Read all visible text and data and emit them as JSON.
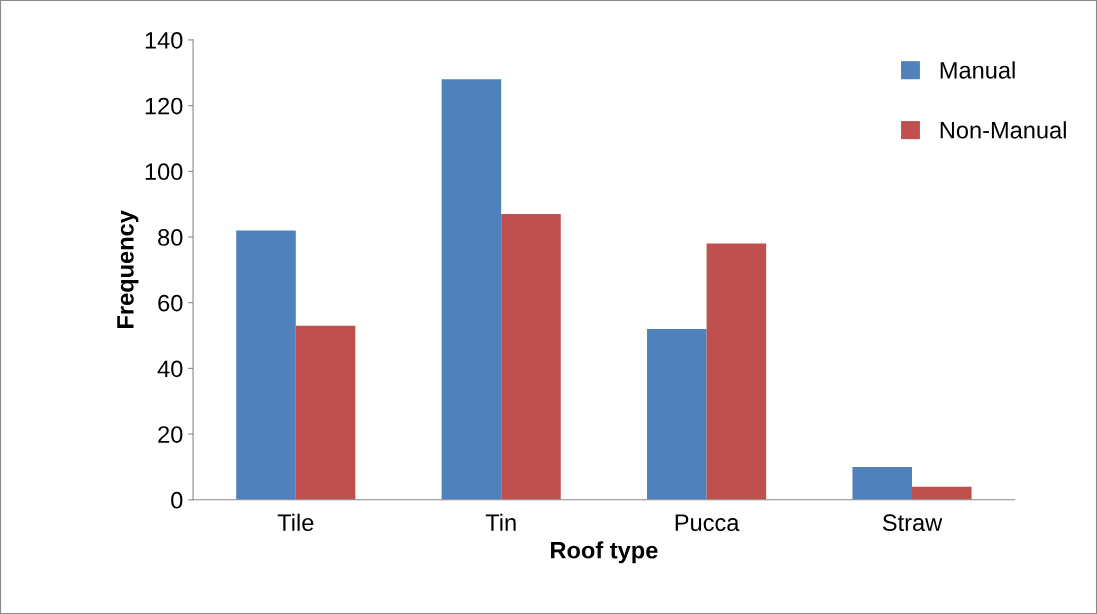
{
  "chart_data": {
    "type": "bar",
    "xlabel": "Roof type",
    "ylabel": "Frequency",
    "categories": [
      "Tile",
      "Tin",
      "Pucca",
      "Straw"
    ],
    "series": [
      {
        "name": "Manual",
        "color": "#4f81bd",
        "values": [
          82,
          128,
          52,
          10
        ]
      },
      {
        "name": "Non-Manual",
        "color": "#c0504d",
        "values": [
          53,
          87,
          78,
          4
        ]
      }
    ],
    "ylim": [
      0,
      140
    ],
    "yticks": [
      0,
      20,
      40,
      60,
      80,
      100,
      120,
      140
    ],
    "grid": false,
    "legend": "top right"
  }
}
